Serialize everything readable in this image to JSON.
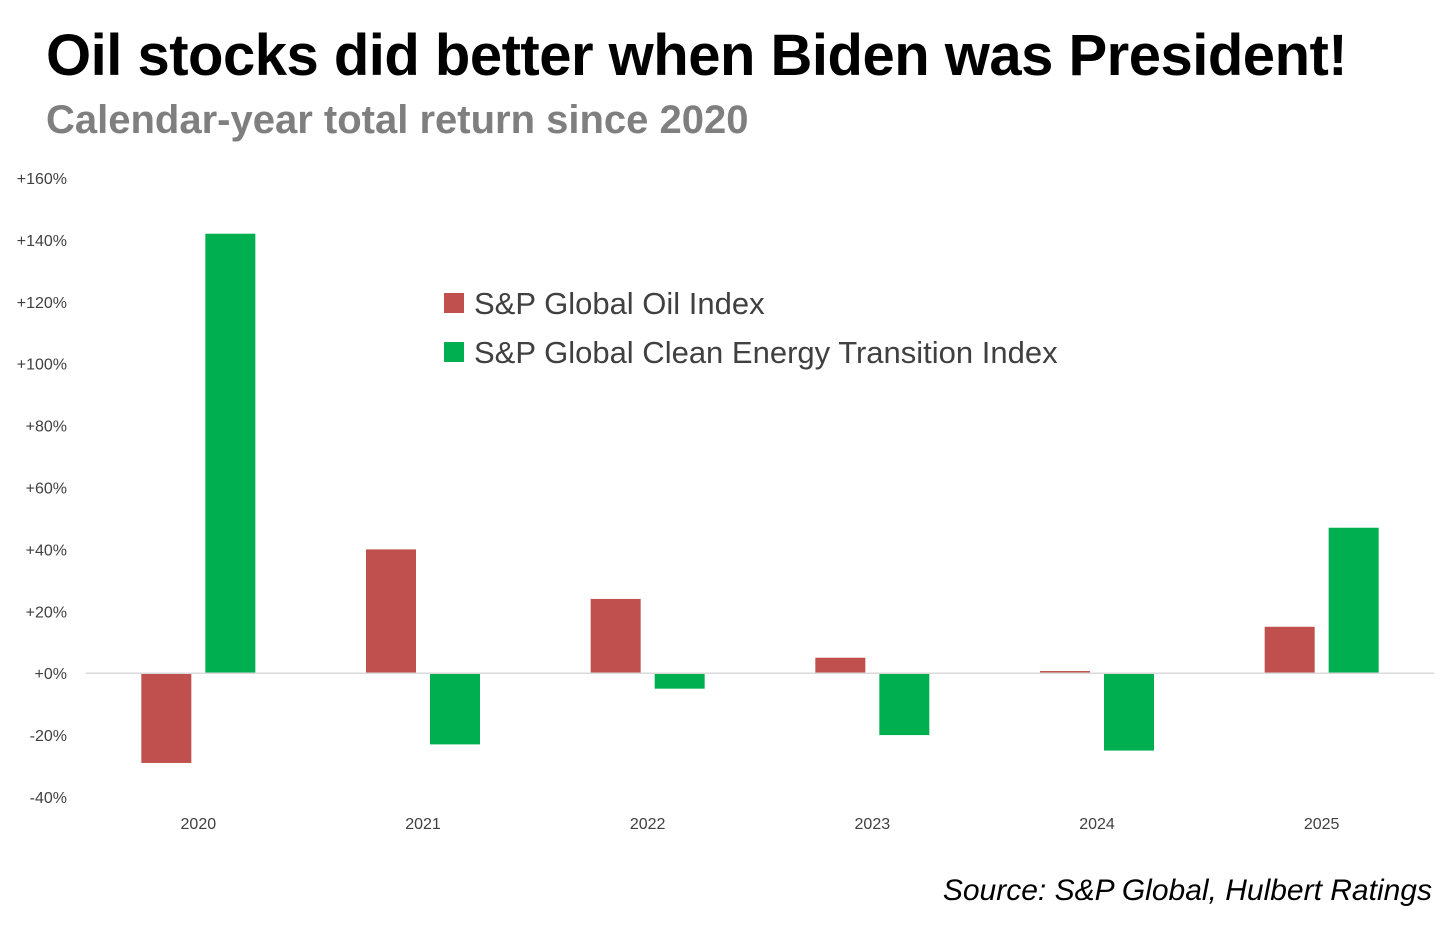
{
  "title": "Oil stocks did better when Biden was President!",
  "subtitle": "Calendar-year total return since 2020",
  "source": "Source: S&P Global, Hulbert Ratings",
  "chart_data": {
    "type": "bar",
    "categories": [
      "2020",
      "2021",
      "2022",
      "2023",
      "2024",
      "2025"
    ],
    "series": [
      {
        "name": "S&P Global Oil Index",
        "color": "#c0504d",
        "values": [
          -29,
          40,
          24,
          5,
          0.7,
          15
        ]
      },
      {
        "name": "S&P Global Clean Energy Transition Index",
        "color": "#00b050",
        "values": [
          142,
          -23,
          -5,
          -20,
          -25,
          47
        ]
      }
    ],
    "ylim": [
      -40,
      160
    ],
    "yticks": [
      -40,
      -20,
      0,
      20,
      40,
      60,
      80,
      100,
      120,
      140,
      160
    ],
    "ytick_labels": [
      "-40%",
      "-20%",
      "+0%",
      "+20%",
      "+40%",
      "+60%",
      "+80%",
      "+100%",
      "+120%",
      "+140%",
      "+160%"
    ],
    "xlabel": "",
    "ylabel": "",
    "grid": false,
    "legend_position": "top-center"
  }
}
